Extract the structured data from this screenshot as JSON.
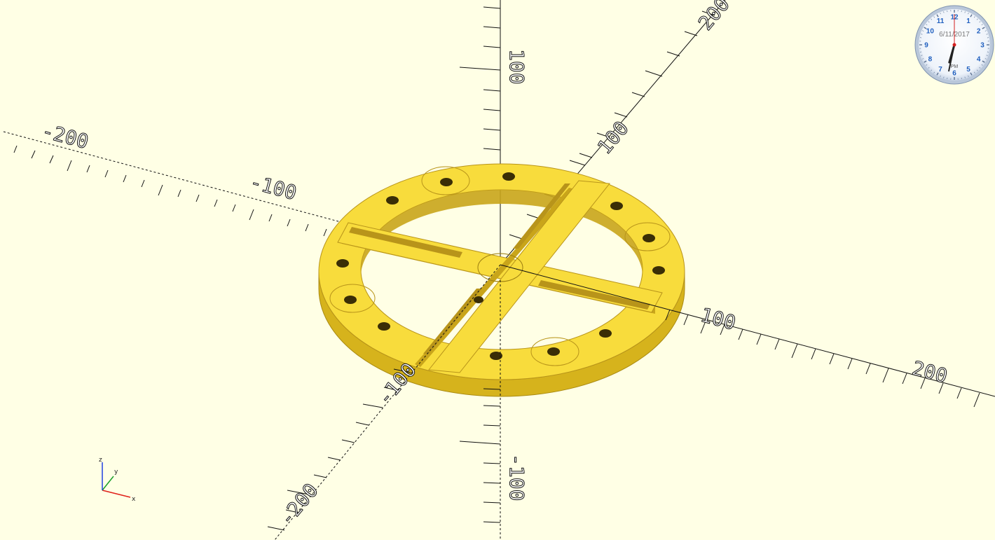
{
  "axis_tick_labels": {
    "x_negative_far": "-200",
    "x_negative_near": "-100",
    "x_positive_near": "100",
    "x_positive_far": "200",
    "y_positive_near": "100",
    "y_positive_far": "200",
    "y_negative_near": "-100",
    "y_negative_far": "-200",
    "z_positive": "100",
    "z_negative": "-100"
  },
  "gizmo": {
    "x_label": "x",
    "y_label": "y",
    "z_label": "z",
    "x_color": "#e0201a",
    "y_color": "#1a9f2a",
    "z_color": "#2040e0"
  },
  "clock": {
    "date": "6/11/2017",
    "period": "PM",
    "numbers": [
      "12",
      "1",
      "2",
      "3",
      "4",
      "5",
      "6",
      "7",
      "8",
      "9",
      "10",
      "11"
    ],
    "hour": 6,
    "minute": 32,
    "second": 0
  },
  "model": {
    "name": "ring-plate-with-cross-slots",
    "color": "#f8dc3c",
    "side_color": "#d9b81e",
    "edge_color": "#b8941a"
  },
  "colors": {
    "background": "#ffffe5",
    "axis": "#111111"
  }
}
